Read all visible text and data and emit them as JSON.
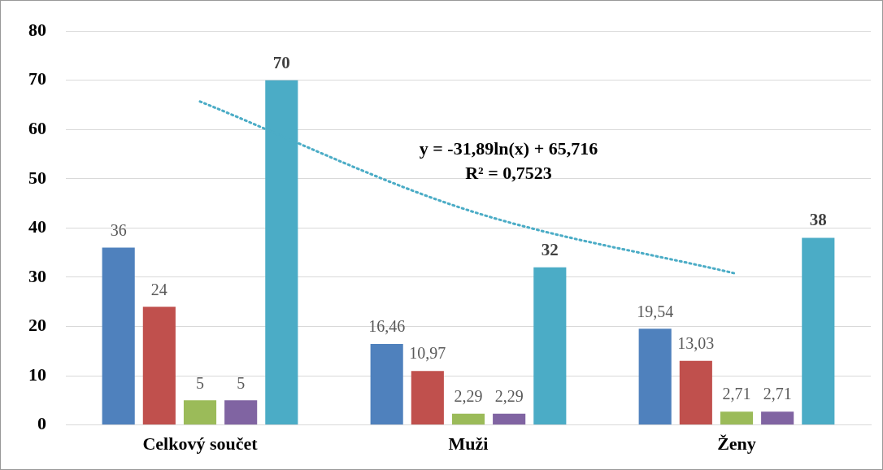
{
  "chart_data": {
    "type": "bar",
    "categories": [
      "Celkový součet",
      "Muži",
      "Ženy"
    ],
    "series": [
      {
        "color": "#4f81bd",
        "values": [
          36,
          16.46,
          19.54
        ],
        "value_labels": [
          "36",
          "16,46",
          "19,54"
        ]
      },
      {
        "color": "#c0504d",
        "values": [
          24,
          10.97,
          13.03
        ],
        "value_labels": [
          "24",
          "10,97",
          "13,03"
        ]
      },
      {
        "color": "#9bbb59",
        "values": [
          5,
          2.29,
          2.71
        ],
        "value_labels": [
          "5",
          "2,29",
          "2,71"
        ]
      },
      {
        "color": "#8064a2",
        "values": [
          5,
          2.29,
          2.71
        ],
        "value_labels": [
          "5",
          "2,29",
          "2,71"
        ]
      },
      {
        "color": "#4bacc6",
        "values": [
          70,
          32,
          38
        ],
        "value_labels": [
          "70",
          "32",
          "38"
        ]
      },
      {
        "type": "line",
        "color": "#4bacc6",
        "line_style": "dotted",
        "marker": "none",
        "values": [
          65.7,
          43.6,
          30.7
        ]
      }
    ],
    "annotations": [
      "y = -31,89ln(x) + 65,716",
      "R² = 0,7523"
    ],
    "ylim": [
      0,
      80
    ],
    "yticks": [
      0,
      10,
      20,
      30,
      40,
      50,
      60,
      70,
      80
    ],
    "grid": "y",
    "legend": false
  }
}
